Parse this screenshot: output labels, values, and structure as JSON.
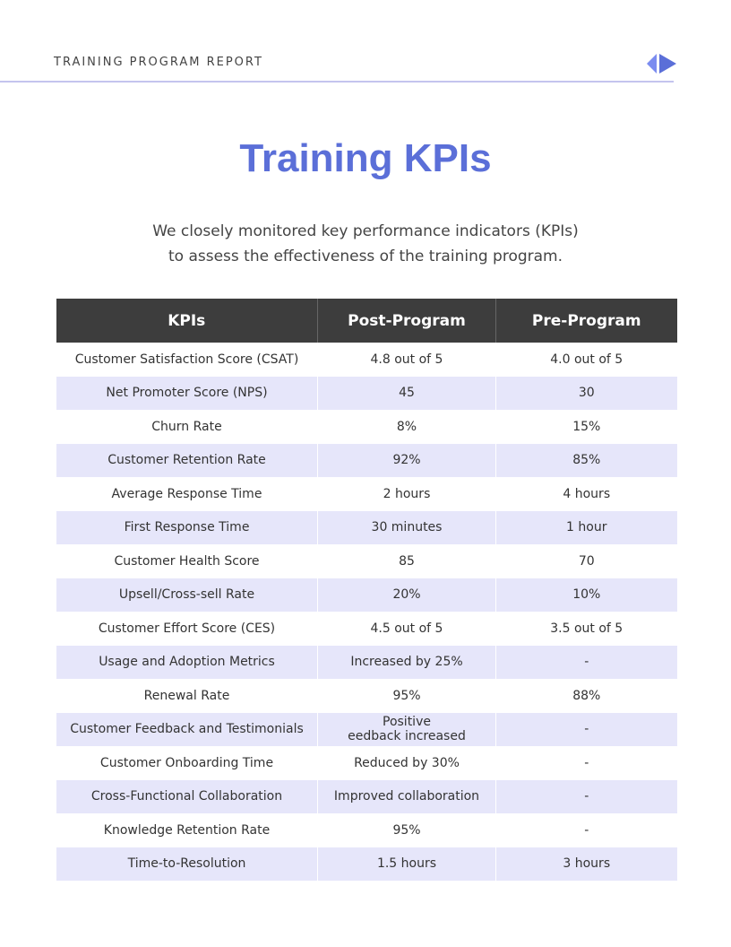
{
  "header": {
    "label": "TRAINING PROGRAM REPORT"
  },
  "title": "Training KPIs",
  "intro": [
    "We closely monitored key performance indicators (KPIs)",
    "to assess the effectiveness of the training program."
  ],
  "table": {
    "columns": [
      "KPIs",
      "Post-Program",
      "Pre-Program"
    ],
    "rows": [
      [
        "Customer Satisfaction Score (CSAT)",
        "4.8 out of 5",
        "4.0 out of 5"
      ],
      [
        "Net Promoter Score (NPS)",
        "45",
        "30"
      ],
      [
        "Churn Rate",
        "8%",
        "15%"
      ],
      [
        "Customer Retention Rate",
        "92%",
        "85%"
      ],
      [
        "Average Response Time",
        "2 hours",
        "4 hours"
      ],
      [
        "First Response Time",
        "30 minutes",
        "1 hour"
      ],
      [
        "Customer Health Score",
        "85",
        "70"
      ],
      [
        "Upsell/Cross-sell Rate",
        "20%",
        "10%"
      ],
      [
        "Customer Effort Score (CES)",
        "4.5 out of 5",
        "3.5 out of 5"
      ],
      [
        "Usage and Adoption Metrics",
        "Increased by 25%",
        "-"
      ],
      [
        "Renewal Rate",
        "95%",
        "88%"
      ],
      [
        "Customer Feedback and Testimonials",
        "Positive\needback increased",
        "-"
      ],
      [
        "Customer Onboarding Time",
        "Reduced by 30%",
        "-"
      ],
      [
        "Cross-Functional Collaboration",
        "Improved collaboration",
        "-"
      ],
      [
        "Knowledge Retention Rate",
        "95%",
        "-"
      ],
      [
        "Time-to-Resolution",
        "1.5 hours",
        "3 hours"
      ]
    ]
  }
}
